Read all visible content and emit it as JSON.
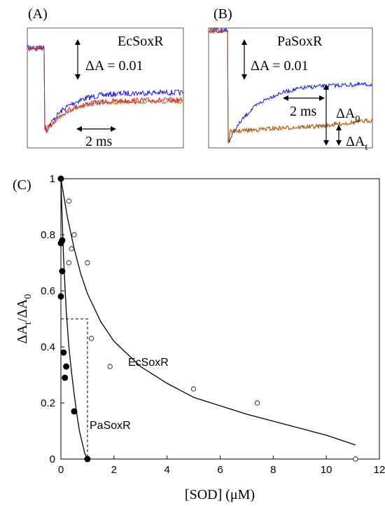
{
  "chart_data": [
    {
      "type": "line",
      "panel_label": "(A)",
      "protein_label": "EcSoxR",
      "scale_bar_y": "ΔA = 0.01",
      "scale_bar_x": "2 ms",
      "series_colors": {
        "blue": "#1a1adc",
        "red": "#d02222",
        "brown": "#b05a10"
      }
    },
    {
      "type": "line",
      "panel_label": "(B)",
      "protein_label": "PaSoxR",
      "scale_bar_y": "ΔA = 0.01",
      "scale_bar_x": "2 ms",
      "delta_0_label": "ΔA",
      "delta_0_sub": "0",
      "delta_t_label": "ΔA",
      "delta_t_sub": "t",
      "series_colors": {
        "blue": "#1a1adc",
        "red": "#d02222",
        "brown": "#b05a10"
      }
    },
    {
      "type": "scatter",
      "panel_label": "(C)",
      "xlabel": "[SOD] (μM)",
      "ylabel_main": "ΔA",
      "ylabel_sub1": "t",
      "ylabel_mid": "/ΔA",
      "ylabel_sub2": "0",
      "xlim": [
        0,
        12
      ],
      "ylim": [
        0,
        1
      ],
      "x_ticks": [
        "0",
        "2",
        "4",
        "6",
        "8",
        "10",
        "12"
      ],
      "y_ticks": [
        "0",
        "0.2",
        "0.4",
        "0.6",
        "0.8",
        "1"
      ],
      "series": [
        {
          "name": "EcSoxR",
          "marker": "open-circle",
          "points": [
            [
              0,
              1.0
            ],
            [
              0.3,
              0.92
            ],
            [
              0.5,
              0.8
            ],
            [
              0.4,
              0.75
            ],
            [
              0.3,
              0.7
            ],
            [
              1.0,
              0.7
            ],
            [
              1.15,
              0.43
            ],
            [
              1.85,
              0.33
            ],
            [
              5.0,
              0.25
            ],
            [
              7.4,
              0.2
            ],
            [
              11.1,
              0.0
            ]
          ],
          "fit": [
            [
              0,
              1.0
            ],
            [
              0.25,
              0.86
            ],
            [
              0.5,
              0.75
            ],
            [
              0.75,
              0.66
            ],
            [
              1.0,
              0.59
            ],
            [
              1.5,
              0.49
            ],
            [
              2.0,
              0.42
            ],
            [
              3.0,
              0.33
            ],
            [
              4.0,
              0.27
            ],
            [
              5.0,
              0.22
            ],
            [
              6.0,
              0.19
            ],
            [
              7.0,
              0.16
            ],
            [
              8.0,
              0.135
            ],
            [
              9.0,
              0.11
            ],
            [
              10.0,
              0.085
            ],
            [
              11.1,
              0.05
            ]
          ]
        },
        {
          "name": "PaSoxR",
          "marker": "filled-circle",
          "points": [
            [
              0,
              1.0
            ],
            [
              0.05,
              0.78
            ],
            [
              0.0,
              0.77
            ],
            [
              0.05,
              0.67
            ],
            [
              0.0,
              0.58
            ],
            [
              0.1,
              0.38
            ],
            [
              0.2,
              0.33
            ],
            [
              0.15,
              0.29
            ],
            [
              0.5,
              0.17
            ],
            [
              1.0,
              0.0
            ]
          ],
          "fit": [
            [
              0,
              1.0
            ],
            [
              0.05,
              0.85
            ],
            [
              0.1,
              0.72
            ],
            [
              0.15,
              0.62
            ],
            [
              0.2,
              0.53
            ],
            [
              0.3,
              0.4
            ],
            [
              0.4,
              0.31
            ],
            [
              0.5,
              0.23
            ],
            [
              0.6,
              0.16
            ],
            [
              0.7,
              0.1
            ],
            [
              0.8,
              0.06
            ],
            [
              0.9,
              0.02
            ],
            [
              1.0,
              0.0
            ]
          ]
        }
      ],
      "half_point_x": 1.0,
      "half_point_y": 0.5
    }
  ]
}
